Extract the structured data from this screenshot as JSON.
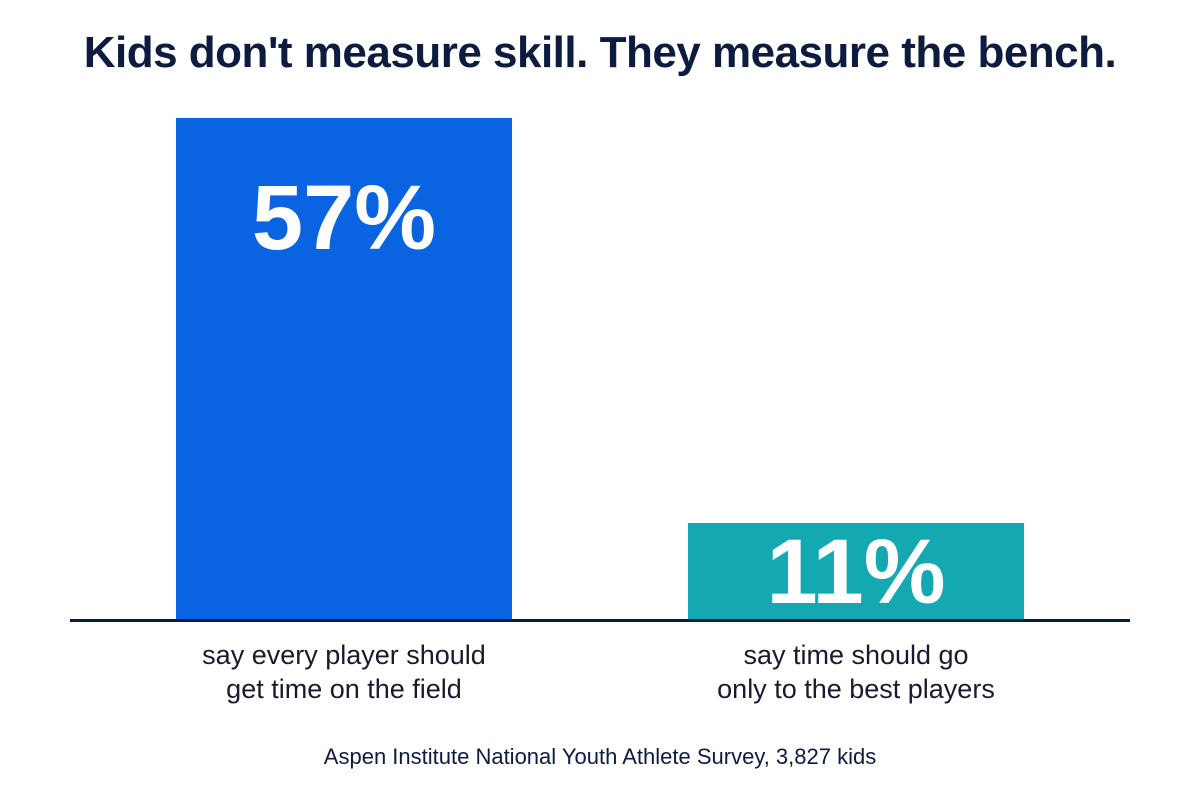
{
  "chart_data": {
    "type": "bar",
    "title": "Kids don't measure skill. They measure the bench.",
    "categories": [
      "say every player should\nget time on the field",
      "say time should go\nonly to the best players"
    ],
    "values": [
      57,
      11
    ],
    "value_labels": [
      "57%",
      "11%"
    ],
    "colors": [
      "#0a63e0",
      "#14a9b1"
    ],
    "note": "Aspen Institute National Youth Athlete Survey, 3,827 kids"
  }
}
